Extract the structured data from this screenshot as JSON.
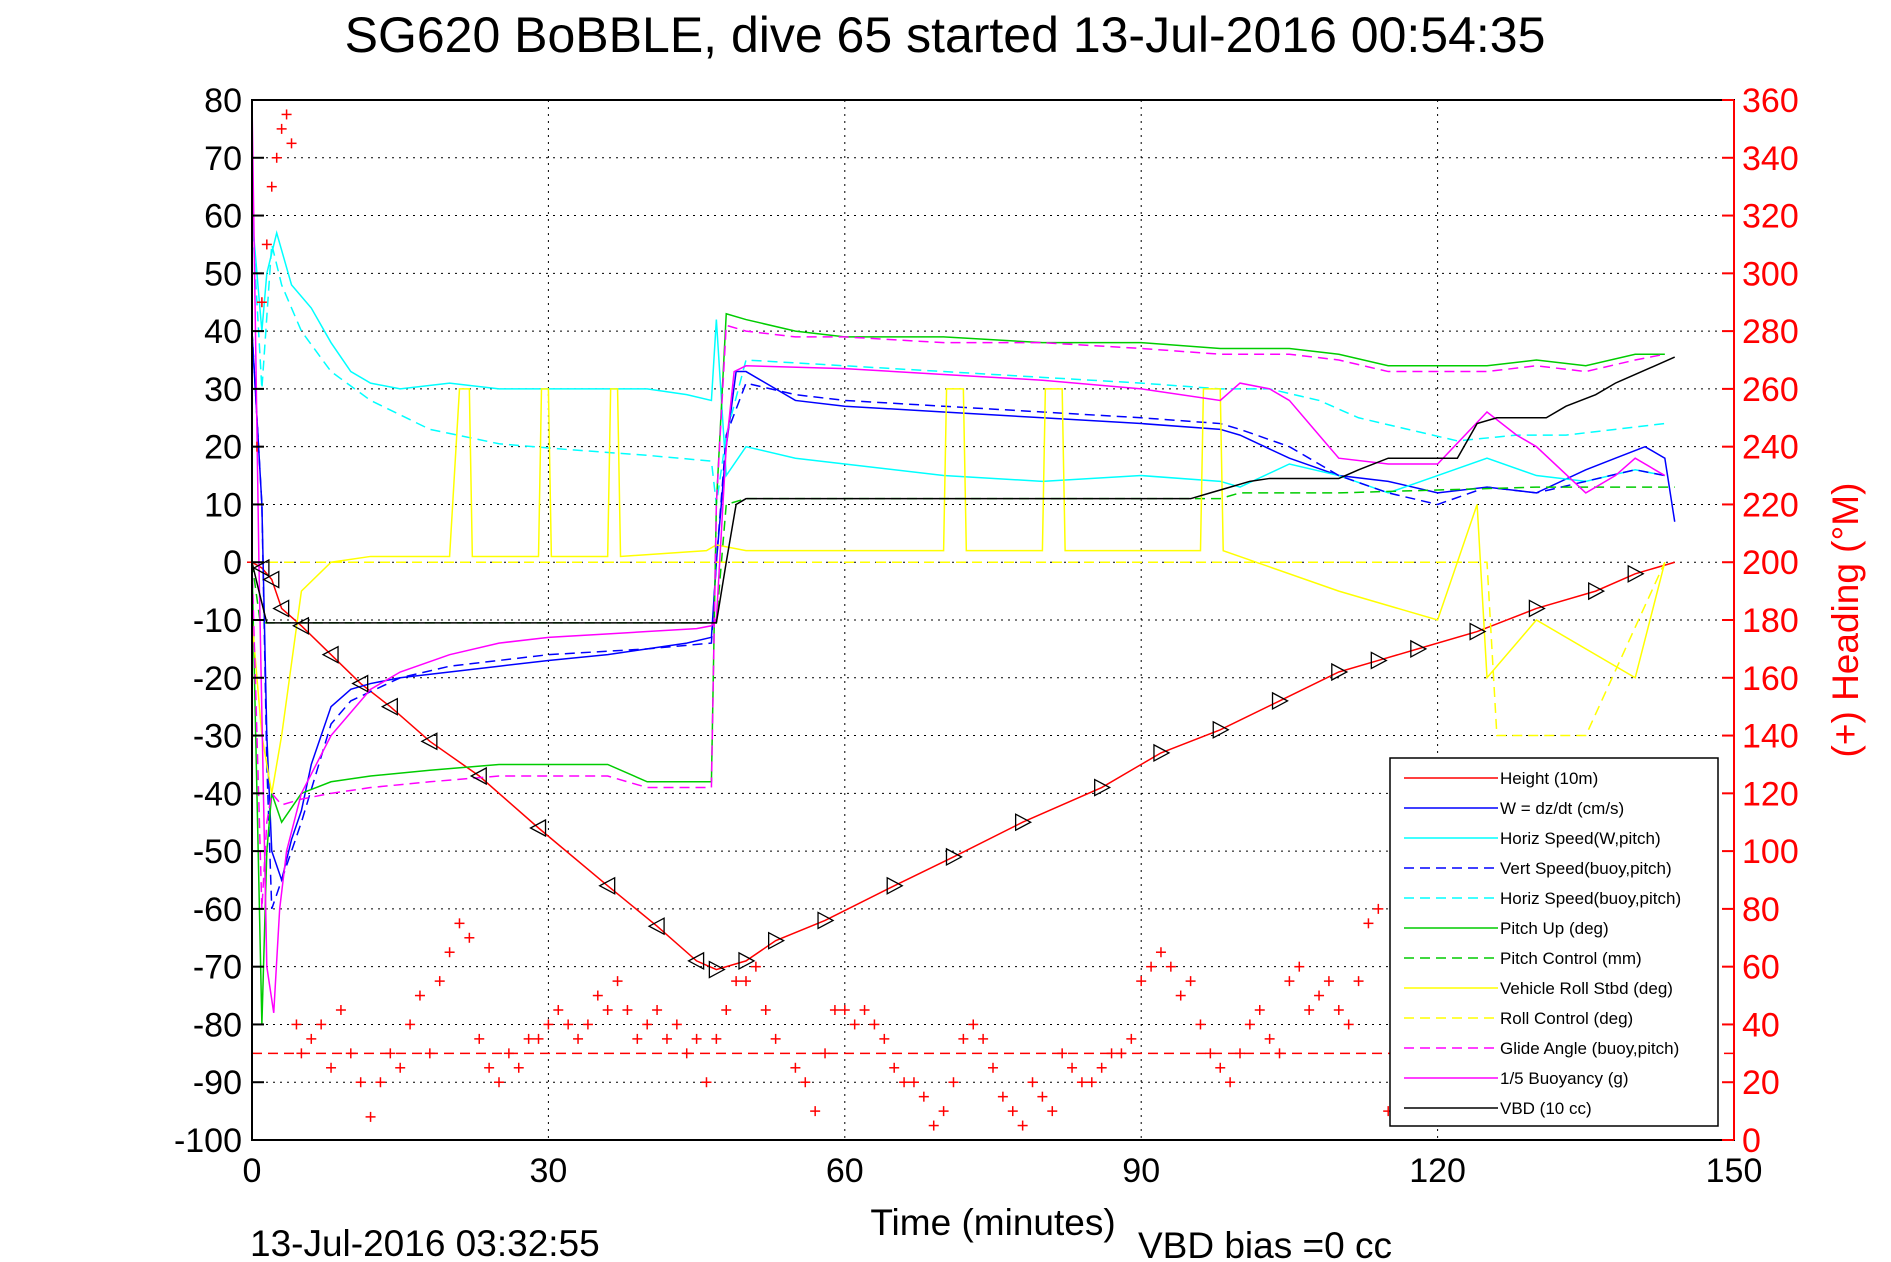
{
  "chart_data": {
    "type": "line",
    "title": "SG620 BoBBLE, dive 65 started 13-Jul-2016 00:54:35",
    "xlabel": "Time (minutes)",
    "ylabel_right": "(+) Heading (°M)",
    "xlim": [
      0,
      150
    ],
    "ylim": [
      -100,
      80
    ],
    "y2lim": [
      0,
      360
    ],
    "x_ticks": [
      "0",
      "30",
      "60",
      "90",
      "120",
      "150"
    ],
    "y_ticks": [
      "80",
      "70",
      "60",
      "50",
      "40",
      "30",
      "20",
      "10",
      "0",
      "-10",
      "-20",
      "-30",
      "-40",
      "-50",
      "-60",
      "-70",
      "-80",
      "-90",
      "-100"
    ],
    "y2_ticks": [
      "360",
      "340",
      "320",
      "300",
      "280",
      "260",
      "240",
      "220",
      "200",
      "180",
      "160",
      "140",
      "120",
      "100",
      "80",
      "60",
      "40",
      "20",
      "0"
    ],
    "grid": true,
    "legend_position": "bottom-right",
    "footer_left": "13-Jul-2016 03:32:55",
    "footer_right": "VBD bias =0 cc",
    "series": [
      {
        "name": "Height (10m)",
        "color": "#ff0000",
        "dash": false,
        "x": [
          0,
          1,
          2,
          3,
          5,
          8,
          11,
          14,
          18,
          23,
          29,
          36,
          41,
          45,
          47,
          50,
          53,
          58,
          65,
          71,
          78,
          86,
          92,
          98,
          104,
          110,
          114,
          118,
          124,
          130,
          136,
          140,
          144
        ],
        "y": [
          0,
          -1,
          -3,
          -8,
          -11,
          -16,
          -21,
          -25,
          -31,
          -37,
          -46,
          -56,
          -63,
          -69,
          -70.5,
          -69,
          -65.5,
          -62,
          -56,
          -51,
          -45,
          -39,
          -33,
          -29,
          -24,
          -19,
          -17,
          -15,
          -12,
          -8,
          -5,
          -2,
          0
        ]
      },
      {
        "name": "W = dz/dt (cm/s)",
        "color": "#0000ff",
        "dash": false,
        "x": [
          0,
          1,
          1.5,
          2,
          3,
          4,
          5,
          6,
          8,
          10,
          12,
          15,
          20,
          25,
          30,
          36,
          40,
          44,
          46.5,
          47,
          48,
          49,
          50,
          55,
          60,
          70,
          80,
          90,
          98,
          100,
          105,
          110,
          115,
          120,
          125,
          130,
          135,
          138,
          141,
          143,
          144
        ],
        "y": [
          40,
          10,
          -30,
          -50,
          -55,
          -48,
          -43,
          -35,
          -25,
          -22,
          -21,
          -20,
          -19,
          -18,
          -17,
          -16,
          -15,
          -14,
          -13,
          0,
          20,
          33,
          33,
          28,
          27,
          26,
          25,
          24,
          23,
          22,
          18,
          15,
          14,
          12,
          13,
          12,
          16,
          18,
          20,
          18,
          7
        ]
      },
      {
        "name": "Horiz Speed(W,pitch)",
        "color": "#00ffff",
        "dash": false,
        "x": [
          0,
          1,
          1.5,
          2.5,
          4,
          6,
          8,
          10,
          12,
          15,
          20,
          25,
          30,
          35,
          40,
          44,
          46.5,
          47,
          48,
          50,
          55,
          60,
          70,
          80,
          90,
          98,
          100,
          105,
          110,
          115,
          120,
          125,
          130,
          135,
          140,
          143
        ],
        "y": [
          60,
          40,
          50,
          57,
          48,
          44,
          38,
          33,
          31,
          30,
          31,
          30,
          30,
          30,
          30,
          29,
          28,
          42,
          15,
          20,
          18,
          17,
          15,
          14,
          15,
          14,
          13,
          17,
          15,
          12,
          15,
          18,
          15,
          14,
          16,
          15
        ]
      },
      {
        "name": "Vert Speed(buoy,pitch)",
        "color": "#0000ff",
        "dash": true,
        "x": [
          0,
          1,
          1.5,
          2,
          3,
          5,
          8,
          10,
          15,
          20,
          25,
          30,
          40,
          46.5,
          47,
          48,
          50,
          55,
          60,
          70,
          80,
          90,
          98,
          100,
          105,
          110,
          115,
          120,
          125,
          130,
          135,
          140,
          143
        ],
        "y": [
          40,
          10,
          -35,
          -60,
          -55,
          -45,
          -28,
          -24,
          -20,
          -18,
          -17,
          -16,
          -15,
          -14,
          0,
          22,
          31,
          29,
          28,
          27,
          26,
          25,
          24,
          23,
          20,
          15,
          12,
          10,
          13,
          12,
          14,
          16,
          15
        ]
      },
      {
        "name": "Horiz Speed(buoy,pitch)",
        "color": "#00ffff",
        "dash": true,
        "x": [
          0,
          1,
          2,
          3,
          5,
          8,
          12,
          18,
          25,
          32,
          40,
          46.5,
          47,
          48,
          50,
          60,
          70,
          80,
          90,
          98,
          103,
          108,
          112,
          117,
          122,
          128,
          133,
          138,
          143
        ],
        "y": [
          60,
          30,
          55,
          48,
          40,
          33,
          28,
          23,
          20.5,
          19.5,
          18.5,
          17.5,
          10,
          22,
          35,
          34,
          33,
          32,
          31,
          30,
          30,
          28,
          25,
          23,
          21,
          22,
          22,
          23,
          24
        ]
      },
      {
        "name": "Pitch Up (deg)",
        "color": "#00cc00",
        "dash": false,
        "x": [
          0,
          1,
          1.5,
          2,
          3,
          5,
          8,
          12,
          18,
          25,
          30,
          36,
          40,
          46.5,
          47,
          48,
          50,
          55,
          60,
          70,
          80,
          90,
          98,
          105,
          110,
          115,
          120,
          125,
          130,
          135,
          140,
          143
        ],
        "y": [
          0,
          -80,
          -50,
          -40,
          -45,
          -40,
          -38,
          -37,
          -36,
          -35,
          -35,
          -35,
          -38,
          -38,
          10,
          43,
          42,
          40,
          39,
          39,
          38,
          38,
          37,
          37,
          36,
          34,
          34,
          34,
          35,
          34,
          36,
          36
        ]
      },
      {
        "name": "Pitch Control (mm)",
        "color": "#00cc00",
        "dash": true,
        "x": [
          0,
          0.8,
          1.3,
          47,
          48,
          50,
          60,
          80,
          98,
          100,
          110,
          120,
          130,
          144
        ],
        "y": [
          0,
          -10,
          -10.5,
          -10.5,
          10,
          11,
          11,
          11,
          11,
          12,
          12,
          12.5,
          13,
          13
        ]
      },
      {
        "name": "Vehicle Roll Stbd (deg)",
        "color": "#ffff00",
        "dash": false,
        "x": [
          0,
          1,
          2,
          3,
          5,
          8,
          12,
          20,
          21,
          21.2,
          22,
          22.3,
          29,
          29.3,
          30,
          30.3,
          36,
          36.3,
          37,
          37.3,
          46,
          47,
          50,
          60,
          70,
          70.3,
          72,
          72.3,
          80,
          80.3,
          82,
          82.3,
          96,
          96.3,
          98,
          98.3,
          110,
          120,
          124,
          125,
          130,
          140,
          143
        ],
        "y": [
          -10,
          -30,
          -40,
          -30,
          -5,
          0,
          1,
          1,
          30,
          30,
          30,
          1,
          1,
          30,
          30,
          1,
          1,
          30,
          30,
          1,
          2,
          3,
          2,
          2,
          2,
          30,
          30,
          2,
          2,
          30,
          30,
          2,
          2,
          30,
          30,
          2,
          -5,
          -10,
          10,
          -20,
          -10,
          -20,
          0
        ]
      },
      {
        "name": "Roll Control (deg)",
        "color": "#ffff00",
        "dash": true,
        "x": [
          0,
          47,
          48,
          96,
          97,
          110,
          125,
          126,
          135,
          143
        ],
        "y": [
          0,
          0,
          0,
          0,
          0,
          0,
          0,
          -30,
          -30,
          0
        ]
      },
      {
        "name": "Glide Angle (buoy,pitch)",
        "color": "#ff00ff",
        "dash": true,
        "x": [
          0,
          1,
          1.5,
          2,
          3,
          5,
          8,
          12,
          18,
          25,
          30,
          36,
          40,
          46.5,
          47,
          48,
          50,
          55,
          60,
          70,
          80,
          90,
          98,
          105,
          110,
          115,
          120,
          125,
          130,
          135,
          140,
          143
        ],
        "y": [
          0,
          -60,
          -45,
          -40,
          -42,
          -41,
          -40,
          -39,
          -38,
          -37,
          -37,
          -37,
          -39,
          -39,
          10,
          41,
          40,
          39,
          39,
          38,
          38,
          37,
          36,
          36,
          35,
          33,
          33,
          33,
          34,
          33,
          35,
          36
        ]
      },
      {
        "name": "1/5 Buoyancy (g)",
        "color": "#ff00ff",
        "dash": false,
        "x": [
          0,
          0.7,
          1.5,
          2.2,
          2.8,
          3.5,
          5,
          8,
          12,
          15,
          20,
          25,
          30,
          35,
          40,
          45,
          46.5,
          47,
          48,
          48.8,
          50,
          60,
          70,
          80,
          90,
          98,
          100,
          103,
          105,
          108,
          110,
          115,
          120,
          125,
          128,
          130,
          135,
          138,
          140,
          143
        ],
        "y": [
          80,
          0,
          -70,
          -78,
          -60,
          -50,
          -40,
          -30,
          -22,
          -19,
          -16,
          -14,
          -13,
          -12.5,
          -12,
          -11.5,
          -11,
          -10,
          20,
          33,
          34,
          33.5,
          32.5,
          31.5,
          30,
          28,
          31,
          30,
          28,
          22,
          18,
          17,
          17,
          26,
          22,
          20,
          12,
          15,
          18,
          15
        ]
      },
      {
        "name": "VBD (10 cc)",
        "color": "#000000",
        "dash": false,
        "x": [
          0,
          0.7,
          1.5,
          47,
          48,
          49,
          50,
          60,
          70,
          80,
          95,
          97,
          99,
          101,
          103,
          105,
          110,
          112,
          115,
          117,
          122,
          124,
          126,
          131,
          133,
          136,
          138,
          140,
          144
        ],
        "y": [
          0,
          -5,
          -10.5,
          -10.5,
          0,
          10,
          11,
          11,
          11,
          11,
          11,
          12,
          13,
          14,
          14.5,
          14.5,
          14.5,
          16,
          18,
          18,
          18,
          24,
          25,
          25,
          27,
          29,
          31,
          32.5,
          35.5
        ]
      },
      {
        "name": "Heading (°M)",
        "color": "#ff0000",
        "marker": "+",
        "axis": "right",
        "x": [
          0,
          0.5,
          1,
          1.5,
          2,
          2.5,
          3,
          3.5,
          4,
          4.5,
          5,
          6,
          7,
          8,
          9,
          10,
          11,
          12,
          13,
          14,
          15,
          16,
          17,
          18,
          19,
          20,
          21,
          22,
          23,
          24,
          25,
          26,
          27,
          28,
          29,
          30,
          31,
          32,
          33,
          34,
          35,
          36,
          37,
          38,
          39,
          40,
          41,
          42,
          43,
          44,
          45,
          46,
          47,
          48,
          49,
          50,
          51,
          52,
          53,
          55,
          56,
          57,
          58,
          59,
          60,
          61,
          62,
          63,
          64,
          65,
          66,
          67,
          68,
          69,
          70,
          71,
          72,
          73,
          74,
          75,
          76,
          77,
          78,
          79,
          80,
          81,
          82,
          83,
          84,
          85,
          86,
          87,
          88,
          89,
          90,
          91,
          92,
          93,
          94,
          95,
          96,
          97,
          98,
          99,
          100,
          101,
          102,
          103,
          104,
          105,
          106,
          107,
          108,
          109,
          110,
          111,
          112,
          113,
          114,
          115
        ],
        "y": [
          200,
          240,
          290,
          310,
          330,
          340,
          350,
          355,
          345,
          40,
          30,
          35,
          40,
          25,
          45,
          30,
          20,
          8,
          20,
          30,
          25,
          40,
          50,
          30,
          55,
          65,
          75,
          70,
          35,
          25,
          20,
          30,
          25,
          35,
          35,
          40,
          45,
          40,
          35,
          40,
          50,
          45,
          55,
          45,
          35,
          40,
          45,
          35,
          40,
          30,
          35,
          20,
          35,
          45,
          55,
          55,
          60,
          45,
          35,
          25,
          20,
          10,
          30,
          45,
          45,
          40,
          45,
          40,
          35,
          25,
          20,
          20,
          15,
          5,
          10,
          20,
          35,
          40,
          35,
          25,
          15,
          10,
          5,
          20,
          15,
          10,
          30,
          25,
          20,
          20,
          25,
          30,
          30,
          35,
          55,
          60,
          65,
          60,
          50,
          55,
          40,
          30,
          25,
          20,
          30,
          40,
          45,
          35,
          30,
          55,
          60,
          45,
          50,
          55,
          45,
          40,
          55,
          75,
          80,
          10
        ]
      }
    ]
  }
}
